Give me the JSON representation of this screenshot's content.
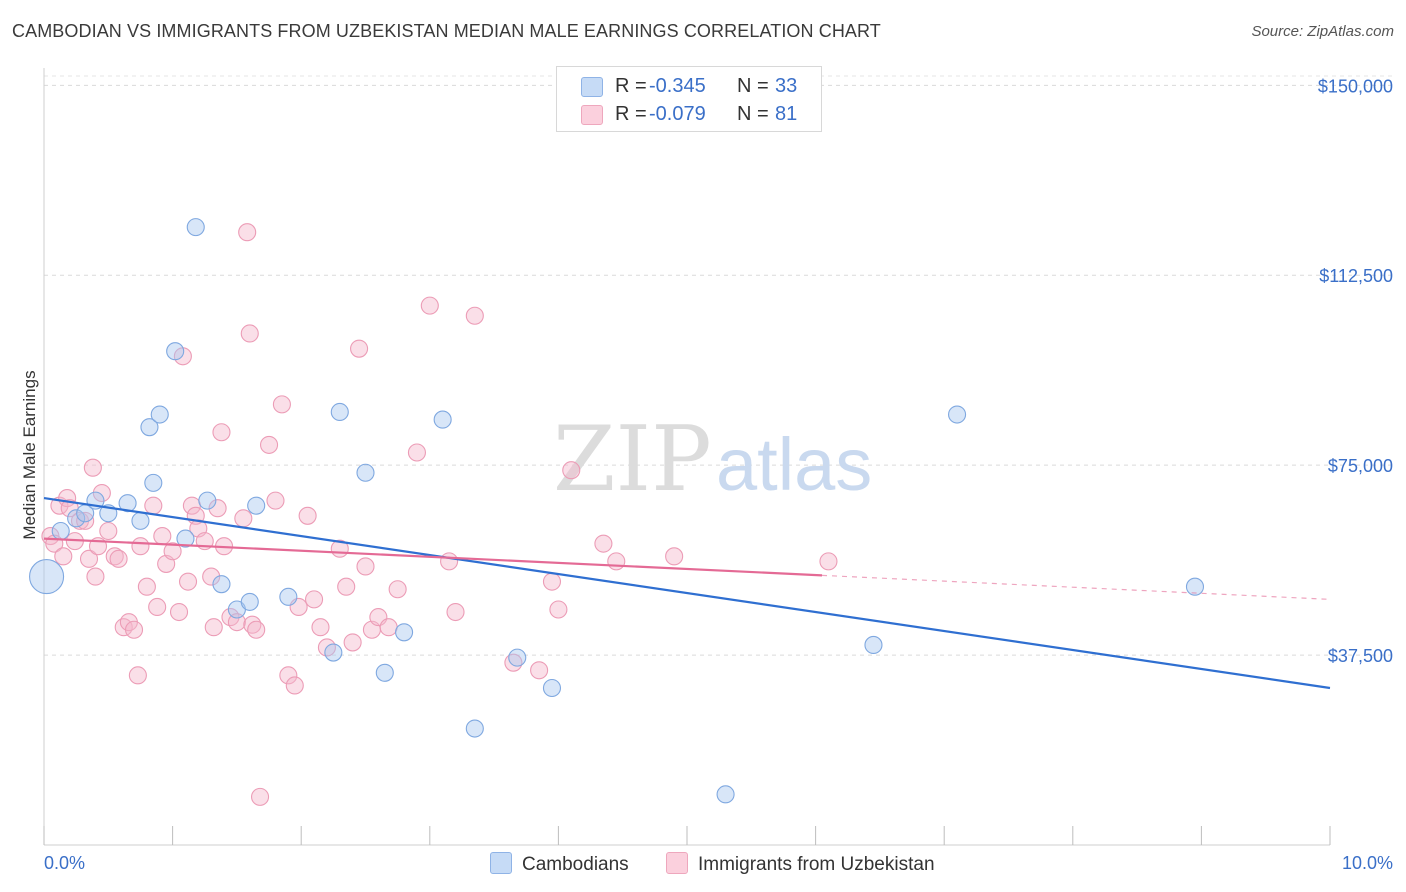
{
  "title": "CAMBODIAN VS IMMIGRANTS FROM UZBEKISTAN MEDIAN MALE EARNINGS CORRELATION CHART",
  "source": "Source: ZipAtlas.com",
  "watermark": {
    "zip": "ZIP",
    "atlas": "atlas"
  },
  "colors": {
    "blue": "#a9c8f0",
    "blue_line": "#2f6fd1",
    "pink": "#f5b8cb",
    "pink_line": "#e46a95",
    "axis_text": "#3a6fc8"
  },
  "legend": {
    "series": [
      {
        "r_label": "R =",
        "r_value": "-0.345",
        "n_label": "N =",
        "n_value": "33"
      },
      {
        "r_label": "R =",
        "r_value": "-0.079",
        "n_label": "N =",
        "n_value": "81"
      }
    ]
  },
  "bottom_legend": {
    "blue": "Cambodians",
    "pink": "Immigrants from Uzbekistan"
  },
  "chart_data": {
    "type": "scatter",
    "title": "CAMBODIAN VS IMMIGRANTS FROM UZBEKISTAN MEDIAN MALE EARNINGS CORRELATION CHART",
    "xlabel": "",
    "ylabel": "Median Male Earnings",
    "xlim": [
      0,
      10
    ],
    "ylim": [
      0,
      155000
    ],
    "x_tick_labels": [
      "0.0%",
      "10.0%"
    ],
    "y_tick_labels": [
      "$37,500",
      "$75,000",
      "$112,500",
      "$150,000"
    ],
    "y_ticks": [
      37500,
      75000,
      112500,
      150000
    ],
    "grid": true,
    "legend_position": "top-center",
    "series": [
      {
        "name": "Cambodians",
        "color": "#a9c8f0",
        "points": [
          [
            0.02,
            53000
          ],
          [
            0.13,
            62000
          ],
          [
            0.25,
            64500
          ],
          [
            0.32,
            65500
          ],
          [
            0.4,
            68000
          ],
          [
            0.5,
            65500
          ],
          [
            0.65,
            67500
          ],
          [
            0.75,
            64000
          ],
          [
            0.82,
            82500
          ],
          [
            0.85,
            71500
          ],
          [
            0.9,
            85000
          ],
          [
            1.02,
            97500
          ],
          [
            1.1,
            60500
          ],
          [
            1.18,
            122000
          ],
          [
            1.27,
            68000
          ],
          [
            1.38,
            51500
          ],
          [
            1.5,
            46500
          ],
          [
            1.6,
            48000
          ],
          [
            1.65,
            67000
          ],
          [
            1.9,
            49000
          ],
          [
            2.25,
            38000
          ],
          [
            2.3,
            85500
          ],
          [
            2.5,
            73500
          ],
          [
            2.65,
            34000
          ],
          [
            2.8,
            42000
          ],
          [
            3.1,
            84000
          ],
          [
            3.35,
            23000
          ],
          [
            3.68,
            37000
          ],
          [
            3.95,
            31000
          ],
          [
            5.3,
            10000
          ],
          [
            6.45,
            39500
          ],
          [
            7.1,
            85000
          ],
          [
            8.95,
            51000
          ]
        ]
      },
      {
        "name": "Immigrants from Uzbekistan",
        "color": "#f5b8cb",
        "points": [
          [
            0.05,
            61000
          ],
          [
            0.08,
            59500
          ],
          [
            0.12,
            67000
          ],
          [
            0.15,
            57000
          ],
          [
            0.18,
            68500
          ],
          [
            0.2,
            66500
          ],
          [
            0.24,
            60000
          ],
          [
            0.28,
            64000
          ],
          [
            0.32,
            64000
          ],
          [
            0.35,
            56500
          ],
          [
            0.38,
            74500
          ],
          [
            0.4,
            53000
          ],
          [
            0.42,
            59000
          ],
          [
            0.45,
            69500
          ],
          [
            0.5,
            62000
          ],
          [
            0.55,
            57000
          ],
          [
            0.58,
            56500
          ],
          [
            0.62,
            43000
          ],
          [
            0.66,
            44000
          ],
          [
            0.7,
            42500
          ],
          [
            0.73,
            33500
          ],
          [
            0.75,
            59000
          ],
          [
            0.8,
            51000
          ],
          [
            0.85,
            67000
          ],
          [
            0.88,
            47000
          ],
          [
            0.92,
            61000
          ],
          [
            0.95,
            55500
          ],
          [
            1.0,
            58000
          ],
          [
            1.05,
            46000
          ],
          [
            1.08,
            96500
          ],
          [
            1.12,
            52000
          ],
          [
            1.15,
            67000
          ],
          [
            1.18,
            65000
          ],
          [
            1.2,
            62500
          ],
          [
            1.25,
            60000
          ],
          [
            1.3,
            53000
          ],
          [
            1.32,
            43000
          ],
          [
            1.35,
            66500
          ],
          [
            1.38,
            81500
          ],
          [
            1.4,
            59000
          ],
          [
            1.45,
            45000
          ],
          [
            1.5,
            44000
          ],
          [
            1.55,
            64500
          ],
          [
            1.58,
            121000
          ],
          [
            1.6,
            101000
          ],
          [
            1.62,
            43500
          ],
          [
            1.65,
            42500
          ],
          [
            1.68,
            9500
          ],
          [
            1.75,
            79000
          ],
          [
            1.8,
            68000
          ],
          [
            1.85,
            87000
          ],
          [
            1.9,
            33500
          ],
          [
            1.95,
            31500
          ],
          [
            1.98,
            47000
          ],
          [
            2.05,
            65000
          ],
          [
            2.1,
            48500
          ],
          [
            2.15,
            43000
          ],
          [
            2.2,
            39000
          ],
          [
            2.3,
            58500
          ],
          [
            2.35,
            51000
          ],
          [
            2.4,
            40000
          ],
          [
            2.45,
            98000
          ],
          [
            2.5,
            55000
          ],
          [
            2.55,
            42500
          ],
          [
            2.6,
            45000
          ],
          [
            2.68,
            43000
          ],
          [
            2.75,
            50500
          ],
          [
            2.9,
            77500
          ],
          [
            3.0,
            106500
          ],
          [
            3.15,
            56000
          ],
          [
            3.2,
            46000
          ],
          [
            3.35,
            104500
          ],
          [
            3.65,
            36000
          ],
          [
            3.85,
            34500
          ],
          [
            3.95,
            52000
          ],
          [
            4.0,
            46500
          ],
          [
            4.1,
            74000
          ],
          [
            4.35,
            59500
          ],
          [
            4.45,
            56000
          ],
          [
            4.9,
            57000
          ],
          [
            6.1,
            56000
          ]
        ]
      }
    ],
    "trend_lines": [
      {
        "series": "Cambodians",
        "x": [
          0.0,
          10.0
        ],
        "y": [
          68500,
          31000
        ],
        "solid_to": 10.0
      },
      {
        "series": "Immigrants from Uzbekistan",
        "x": [
          0.0,
          10.0
        ],
        "y": [
          60500,
          48500
        ],
        "solid_to": 6.05
      }
    ]
  }
}
